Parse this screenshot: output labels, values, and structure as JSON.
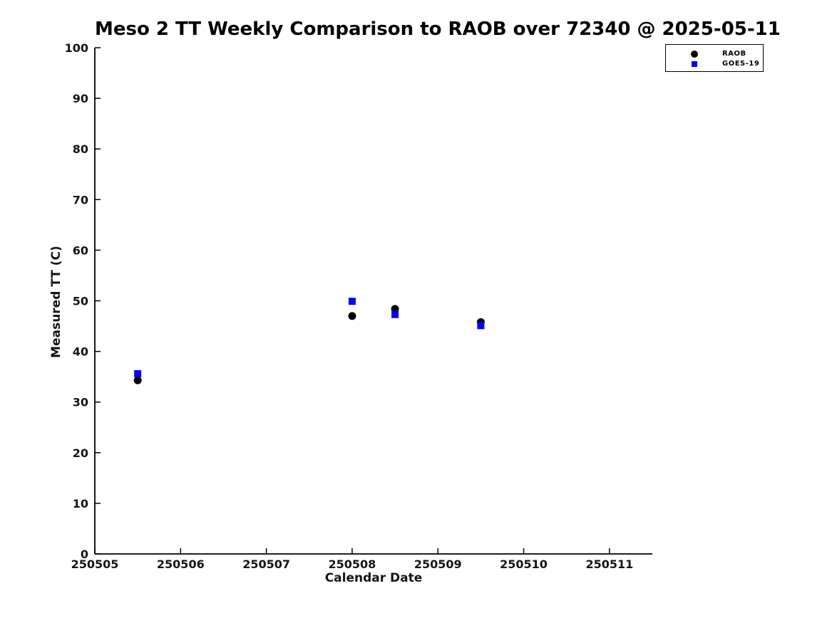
{
  "chart_data": {
    "type": "scatter",
    "title": "Meso 2 TT Weekly Comparison to RAOB over 72340 @ 2025-05-11",
    "xlabel": "Calendar Date",
    "ylabel": "Measured TT (C)",
    "xlim": [
      250505,
      250511.5
    ],
    "ylim": [
      0,
      100
    ],
    "xticks": [
      250505,
      250506,
      250507,
      250508,
      250509,
      250510,
      250511
    ],
    "yticks": [
      0,
      10,
      20,
      30,
      40,
      50,
      60,
      70,
      80,
      90,
      100
    ],
    "grid": false,
    "legend_position": "top-right",
    "series": [
      {
        "name": "RAOB",
        "marker": "circle",
        "color": "#000000",
        "x": [
          250505.5,
          250508.0,
          250508.5,
          250509.5
        ],
        "y": [
          34.3,
          47.0,
          48.4,
          45.8
        ]
      },
      {
        "name": "GOES-19",
        "marker": "square",
        "color": "#0000ff",
        "x": [
          250505.5,
          250508.0,
          250508.5,
          250509.5
        ],
        "y": [
          35.6,
          49.9,
          47.3,
          45.1
        ]
      }
    ]
  }
}
